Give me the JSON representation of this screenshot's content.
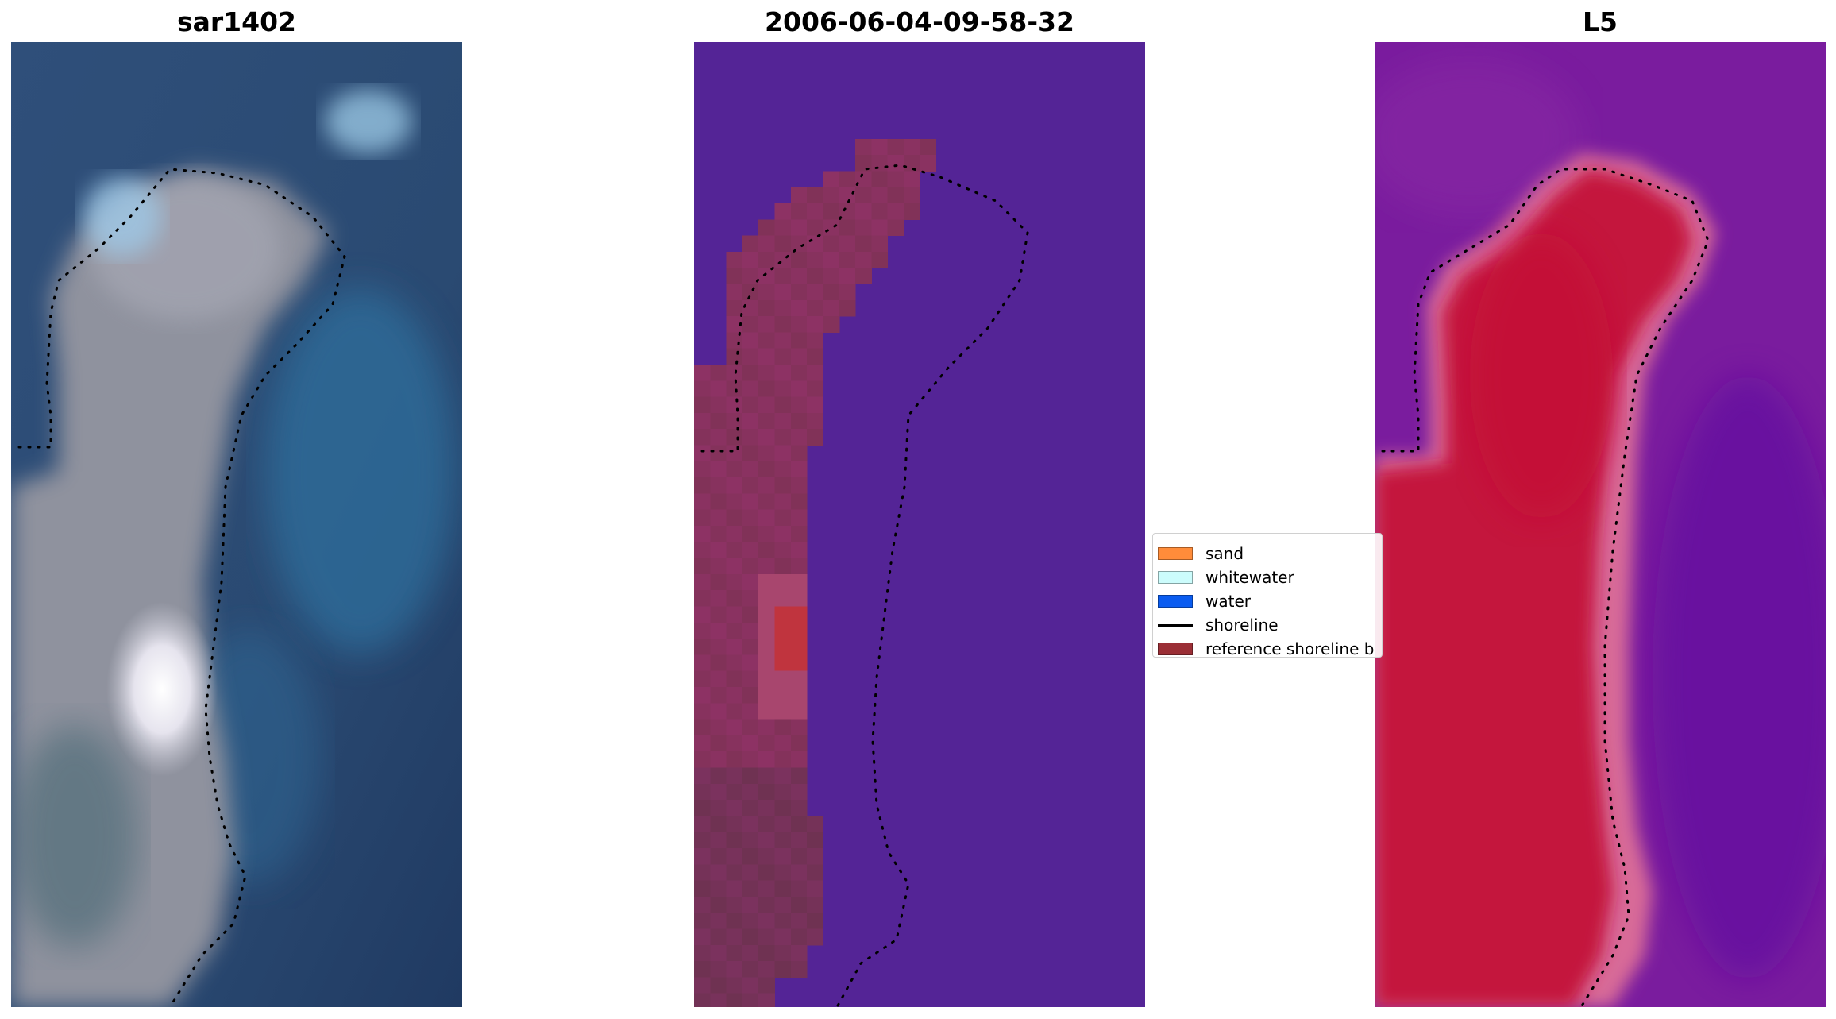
{
  "panels": [
    {
      "title": "sar1402",
      "style": "rgb"
    },
    {
      "title": "2006-06-04-09-58-32",
      "style": "classified"
    },
    {
      "title": "L5",
      "style": "index"
    }
  ],
  "legend": {
    "items": [
      {
        "label": "sand",
        "kind": "patch",
        "color": "#ff8c3a"
      },
      {
        "label": "whitewater",
        "kind": "patch",
        "color": "#ccfcfc"
      },
      {
        "label": "water",
        "kind": "patch",
        "color": "#0a5cf0"
      },
      {
        "label": "shoreline",
        "kind": "line",
        "color": "#000000"
      },
      {
        "label": "reference shoreline b",
        "kind": "patch",
        "color": "#9b2f36"
      }
    ]
  },
  "colors": {
    "rgb_water": "#27466f",
    "rgb_sand": "#8f929e",
    "class_water": "#542496",
    "class_sand": "#8d3264",
    "class_ref": "#c0343e",
    "index_water": "#77169c",
    "index_sand": "#c4123e",
    "index_edge": "#d86a98",
    "shoreline": "#000000"
  }
}
